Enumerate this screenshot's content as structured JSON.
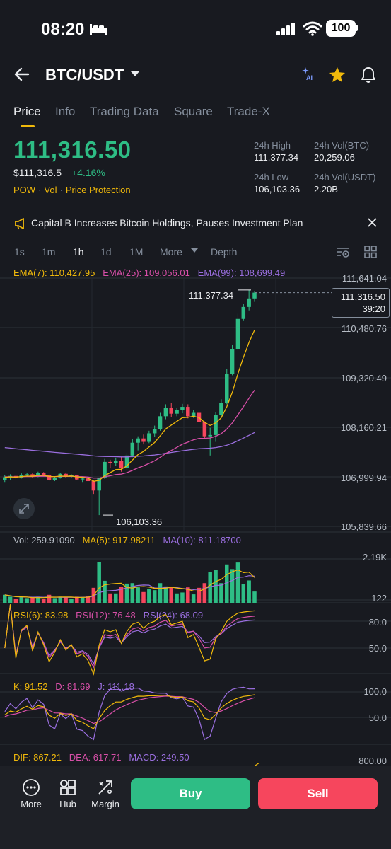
{
  "status_bar": {
    "time": "08:20",
    "battery": "100"
  },
  "header": {
    "pair": "BTC/USDT"
  },
  "tabs": [
    {
      "label": "Price",
      "active": true
    },
    {
      "label": "Info",
      "active": false
    },
    {
      "label": "Trading Data",
      "active": false
    },
    {
      "label": "Square",
      "active": false
    },
    {
      "label": "Trade-X",
      "active": false
    }
  ],
  "price": {
    "last": "111,316.50",
    "usd": "$111,316.5",
    "change": "+4.16%",
    "tags": [
      "POW",
      "Vol",
      "Price Protection"
    ]
  },
  "stats": {
    "high_label": "24h High",
    "high": "111,377.34",
    "vol_btc_label": "24h Vol(BTC)",
    "vol_btc": "20,259.06",
    "low_label": "24h Low",
    "low": "106,103.36",
    "vol_usdt_label": "24h Vol(USDT)",
    "vol_usdt": "2.20B"
  },
  "news": {
    "text": "Capital B Increases Bitcoin Holdings, Pauses Investment Plan"
  },
  "intervals": [
    "1s",
    "1m",
    "1h",
    "1d",
    "1M",
    "More",
    "Depth"
  ],
  "active_interval": "1h",
  "ema": {
    "ema7": "EMA(7): 110,427.95",
    "ema25": "EMA(25): 109,056.01",
    "ema99": "EMA(99): 108,699.49"
  },
  "price_axis": [
    "111,641.04",
    "110,480.76",
    "109,320.49",
    "108,160.21",
    "106,999.94",
    "105,839.66"
  ],
  "chart_annotations": {
    "high": "111,377.34",
    "low": "106,103.36",
    "current": "111,316.50",
    "countdown": "39:20"
  },
  "volume": {
    "vol": "Vol: 259.91090",
    "ma5": "MA(5): 917.98211",
    "ma10": "MA(10): 811.18700",
    "axis_top": "2.19K",
    "axis_bottom": "122"
  },
  "rsi": {
    "rsi6": "RSI(6): 83.98",
    "rsi12": "RSI(12): 76.48",
    "rsi24": "RSI(24): 68.09",
    "axis_top": "80.0",
    "axis_bottom": "50.0"
  },
  "kdj": {
    "k": "K: 91.52",
    "d": "D: 81.69",
    "j": "J: 111.18",
    "axis_top": "100.0",
    "axis_bottom": "50.0"
  },
  "macd": {
    "dif": "DIF: 867.21",
    "dea": "DEA: 617.71",
    "macd": "MACD: 249.50",
    "axis_top": "800.00"
  },
  "footer": {
    "more": "More",
    "hub": "Hub",
    "margin": "Margin",
    "buy": "Buy",
    "sell": "Sell"
  },
  "colors": {
    "up": "#2ebd85",
    "down": "#f6465d",
    "accent": "#f0b90b",
    "ema25": "#d84fa8",
    "ema99": "#9b6fe0",
    "background": "#181a20"
  },
  "candles": [
    [
      106930,
      107050,
      106880,
      106990
    ],
    [
      106990,
      107060,
      106930,
      107020
    ],
    [
      107020,
      107040,
      106950,
      106980
    ],
    [
      106980,
      107080,
      106960,
      107040
    ],
    [
      107040,
      107100,
      107000,
      107060
    ],
    [
      107060,
      107090,
      106980,
      107000
    ],
    [
      107000,
      107120,
      106990,
      107090
    ],
    [
      107090,
      107110,
      107020,
      107040
    ],
    [
      107040,
      107070,
      106900,
      106930
    ],
    [
      106930,
      107000,
      106900,
      106980
    ],
    [
      106980,
      107090,
      106960,
      107070
    ],
    [
      107070,
      107100,
      106980,
      107000
    ],
    [
      107000,
      107060,
      106970,
      107040
    ],
    [
      107040,
      107050,
      106920,
      106940
    ],
    [
      106940,
      106990,
      106880,
      106960
    ],
    [
      106960,
      106990,
      106850,
      106900
    ],
    [
      106900,
      106920,
      106600,
      106680
    ],
    [
      106680,
      106980,
      106103,
      106980
    ],
    [
      106980,
      107420,
      106950,
      107350
    ],
    [
      107350,
      107400,
      107200,
      107320
    ],
    [
      107320,
      107450,
      107250,
      107380
    ],
    [
      107380,
      107460,
      107120,
      107200
    ],
    [
      107200,
      107560,
      107150,
      107500
    ],
    [
      107500,
      107880,
      107460,
      107800
    ],
    [
      107800,
      107950,
      107620,
      107900
    ],
    [
      107900,
      107990,
      107760,
      107820
    ],
    [
      107820,
      108080,
      107790,
      108020
    ],
    [
      108020,
      108200,
      107930,
      108120
    ],
    [
      108120,
      108500,
      108080,
      108420
    ],
    [
      108420,
      108700,
      108350,
      108620
    ],
    [
      108620,
      108730,
      108400,
      108480
    ],
    [
      108480,
      108620,
      108420,
      108560
    ],
    [
      108560,
      108710,
      108490,
      108640
    ],
    [
      108640,
      108700,
      108370,
      108420
    ],
    [
      108420,
      108560,
      108380,
      108500
    ],
    [
      108500,
      108560,
      108240,
      108290
    ],
    [
      108290,
      108300,
      107880,
      107950
    ],
    [
      107950,
      108150,
      107500,
      107980
    ],
    [
      107980,
      108520,
      107820,
      108450
    ],
    [
      108450,
      108820,
      108400,
      108740
    ],
    [
      108740,
      109520,
      108700,
      109420
    ],
    [
      109420,
      110100,
      109380,
      110000
    ],
    [
      110000,
      110820,
      109960,
      110700
    ],
    [
      110700,
      111050,
      110650,
      110980
    ],
    [
      110980,
      111377,
      110900,
      111180
    ],
    [
      111180,
      111340,
      111100,
      111316
    ]
  ]
}
